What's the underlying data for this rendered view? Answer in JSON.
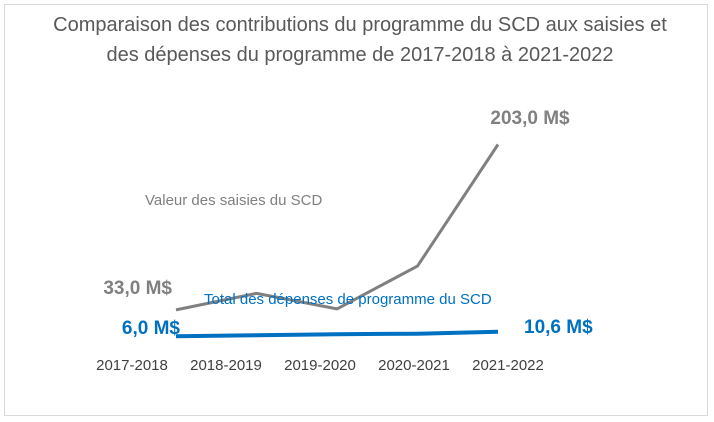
{
  "chart_data": {
    "type": "line",
    "title": "Comparaison des contributions du programme du SCD aux saisies et des dépenses du programme de 2017-2018 à 2021-2022",
    "categories": [
      "2017-2018",
      "2018-2019",
      "2019-2020",
      "2020-2021",
      "2021-2022"
    ],
    "ylim": [
      0,
      220
    ],
    "grid": false,
    "series": [
      {
        "name": "Valeur des saisies du SCD",
        "values": [
          33.0,
          50,
          34,
          78,
          203.0
        ],
        "color": "#808080",
        "start_label": "33,0 M$",
        "end_label": "203,0 M$"
      },
      {
        "name": "Total des dépenses de programme du SCD",
        "values": [
          6.0,
          7.0,
          8.0,
          8.5,
          10.6
        ],
        "color": "#0070c0",
        "start_label": "6,0 M$",
        "end_label": "10,6 M$"
      }
    ]
  }
}
